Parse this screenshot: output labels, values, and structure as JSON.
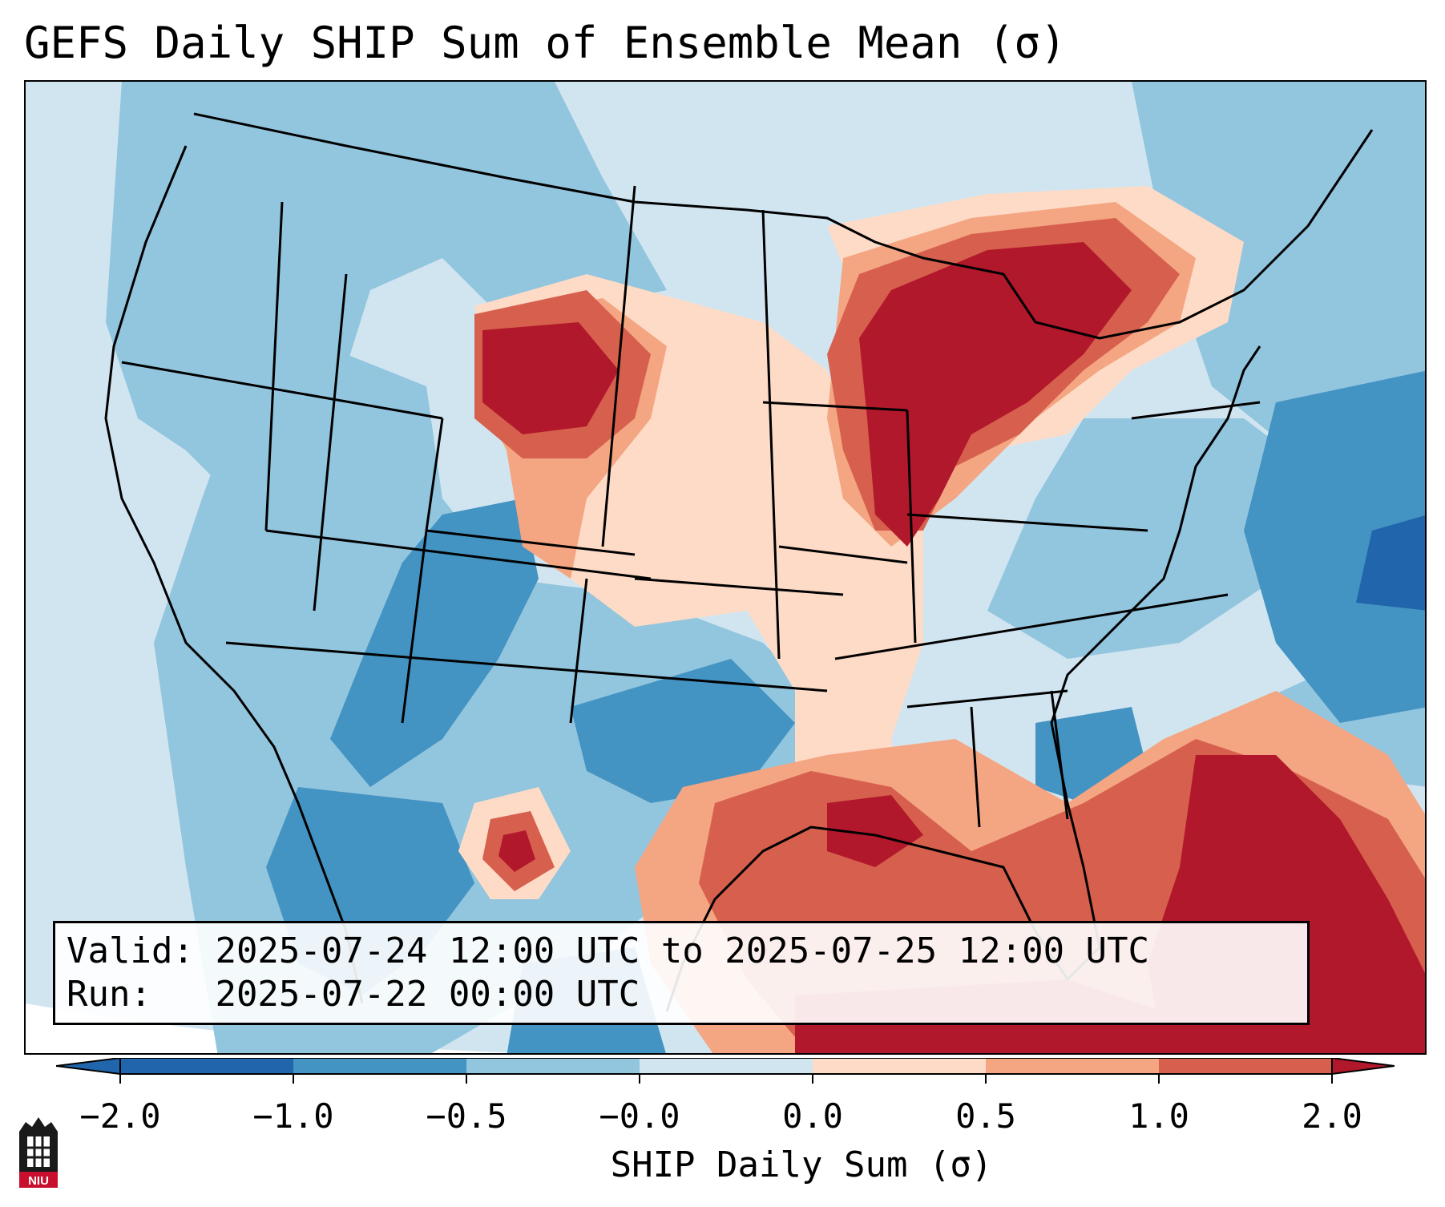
{
  "title": "GEFS Daily SHIP Sum of Ensemble Mean (σ)",
  "info": {
    "valid_label": "Valid:",
    "valid_value": "2025-07-24 12:00 UTC to 2025-07-25 12:00 UTC",
    "run_label": "Run:",
    "run_value": "2025-07-22 00:00 UTC"
  },
  "colorbar": {
    "label": "SHIP Daily Sum (σ)",
    "ticks": [
      "−2.0",
      "−1.0",
      "−0.5",
      "−0.0",
      "0.0",
      "0.5",
      "1.0",
      "2.0"
    ],
    "colors": [
      "#2166ac",
      "#4393c3",
      "#92c5de",
      "#d1e5f0",
      "#fddbc7",
      "#f4a582",
      "#d6604d",
      "#b2182b"
    ]
  },
  "logo_text": "NIU",
  "colors": {
    "ocean_background": "#d1e5f0",
    "strong_negative": "#2166ac",
    "strong_positive": "#b2182b"
  }
}
